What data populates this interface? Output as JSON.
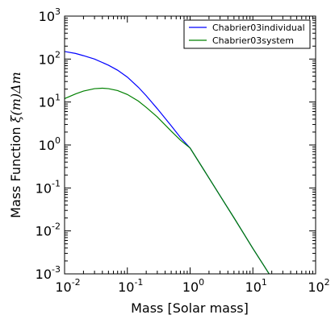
{
  "chart_data": {
    "type": "line",
    "title": "",
    "xlabel": "Mass [Solar mass]",
    "ylabel": {
      "prefix": "Mass Function ",
      "math": "ξ(m)Δm"
    },
    "xscale": "log",
    "yscale": "log",
    "xlim": [
      0.01,
      100
    ],
    "ylim": [
      0.001,
      1000
    ],
    "xticks": [
      {
        "base": "10",
        "exp": "-2"
      },
      {
        "base": "10",
        "exp": "-1"
      },
      {
        "base": "10",
        "exp": "0"
      },
      {
        "base": "10",
        "exp": "1"
      },
      {
        "base": "10",
        "exp": "2"
      }
    ],
    "yticks": [
      {
        "base": "10",
        "exp": "-3"
      },
      {
        "base": "10",
        "exp": "-2"
      },
      {
        "base": "10",
        "exp": "-1"
      },
      {
        "base": "10",
        "exp": "0"
      },
      {
        "base": "10",
        "exp": "1"
      },
      {
        "base": "10",
        "exp": "2"
      },
      {
        "base": "10",
        "exp": "3"
      }
    ],
    "grid": false,
    "legend_position": "top-right",
    "series": [
      {
        "name": "Chabrier03individual",
        "color": "#0000ff",
        "x": [
          0.01,
          0.015,
          0.02,
          0.03,
          0.05,
          0.07,
          0.1,
          0.15,
          0.2,
          0.3,
          0.5,
          0.7,
          1.0,
          2,
          3,
          5,
          7,
          10,
          15,
          20
        ],
        "y": [
          150,
          135,
          120,
          100,
          72,
          55,
          38,
          22,
          14,
          7,
          2.8,
          1.5,
          0.85,
          0.17,
          0.066,
          0.0202,
          0.0091,
          0.0039,
          0.00155,
          0.0008
        ]
      },
      {
        "name": "Chabrier03system",
        "color": "#008000",
        "x": [
          0.01,
          0.015,
          0.02,
          0.03,
          0.04,
          0.05,
          0.07,
          0.1,
          0.15,
          0.2,
          0.3,
          0.5,
          0.7,
          1.0,
          2,
          3,
          5,
          7,
          10,
          15,
          20
        ],
        "y": [
          12,
          15.5,
          18,
          20.5,
          21,
          20.5,
          18.5,
          15,
          10.5,
          7.5,
          4.5,
          2.1,
          1.3,
          0.85,
          0.17,
          0.066,
          0.0202,
          0.0091,
          0.0039,
          0.00155,
          0.0008
        ]
      }
    ]
  }
}
